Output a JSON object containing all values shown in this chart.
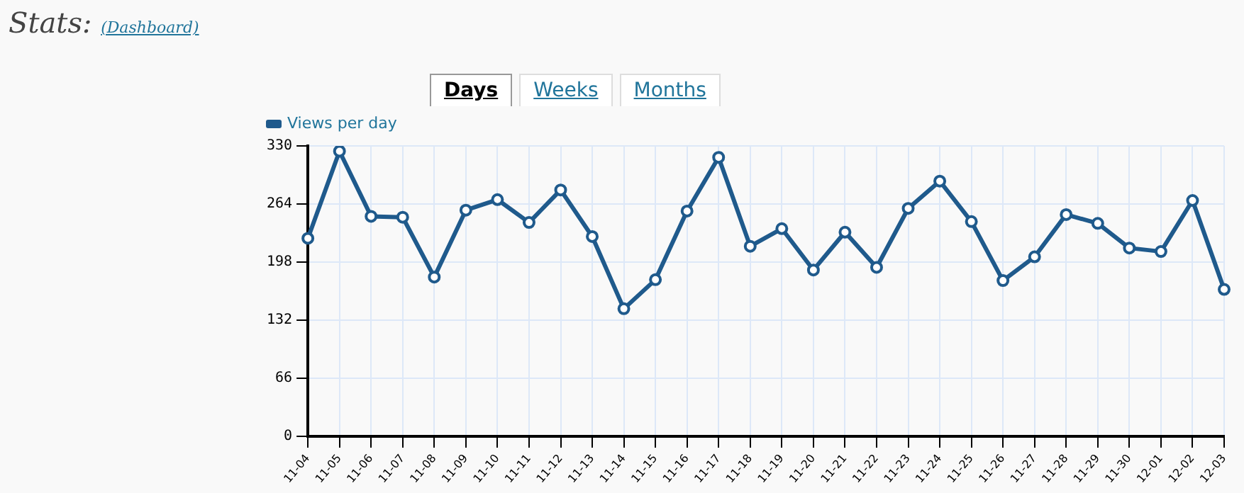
{
  "chart_data": {
    "type": "line",
    "title": "Stats:",
    "annotations": [
      "(Dashboard)",
      "Days",
      "Weeks",
      "Months"
    ],
    "categories": [
      "11-04",
      "11-05",
      "11-06",
      "11-07",
      "11-08",
      "11-09",
      "11-10",
      "11-11",
      "11-12",
      "11-13",
      "11-14",
      "11-15",
      "11-16",
      "11-17",
      "11-18",
      "11-19",
      "11-20",
      "11-21",
      "11-22",
      "11-23",
      "11-24",
      "11-25",
      "11-26",
      "11-27",
      "11-28",
      "11-29",
      "11-30",
      "12-01",
      "12-02",
      "12-03"
    ],
    "series": [
      {
        "name": "Views per day",
        "color": "#1f5a8c",
        "values": [
          225,
          324,
          250,
          249,
          181,
          257,
          269,
          243,
          280,
          227,
          145,
          178,
          256,
          317,
          216,
          236,
          189,
          232,
          192,
          259,
          290,
          244,
          177,
          204,
          252,
          242,
          214,
          210,
          268,
          167
        ]
      }
    ],
    "ylim": [
      0,
      330
    ],
    "yticks": [
      0,
      66,
      132,
      198,
      264,
      330
    ],
    "grid": true,
    "legend": "top left",
    "marker": "circle",
    "line_style": "solid"
  }
}
